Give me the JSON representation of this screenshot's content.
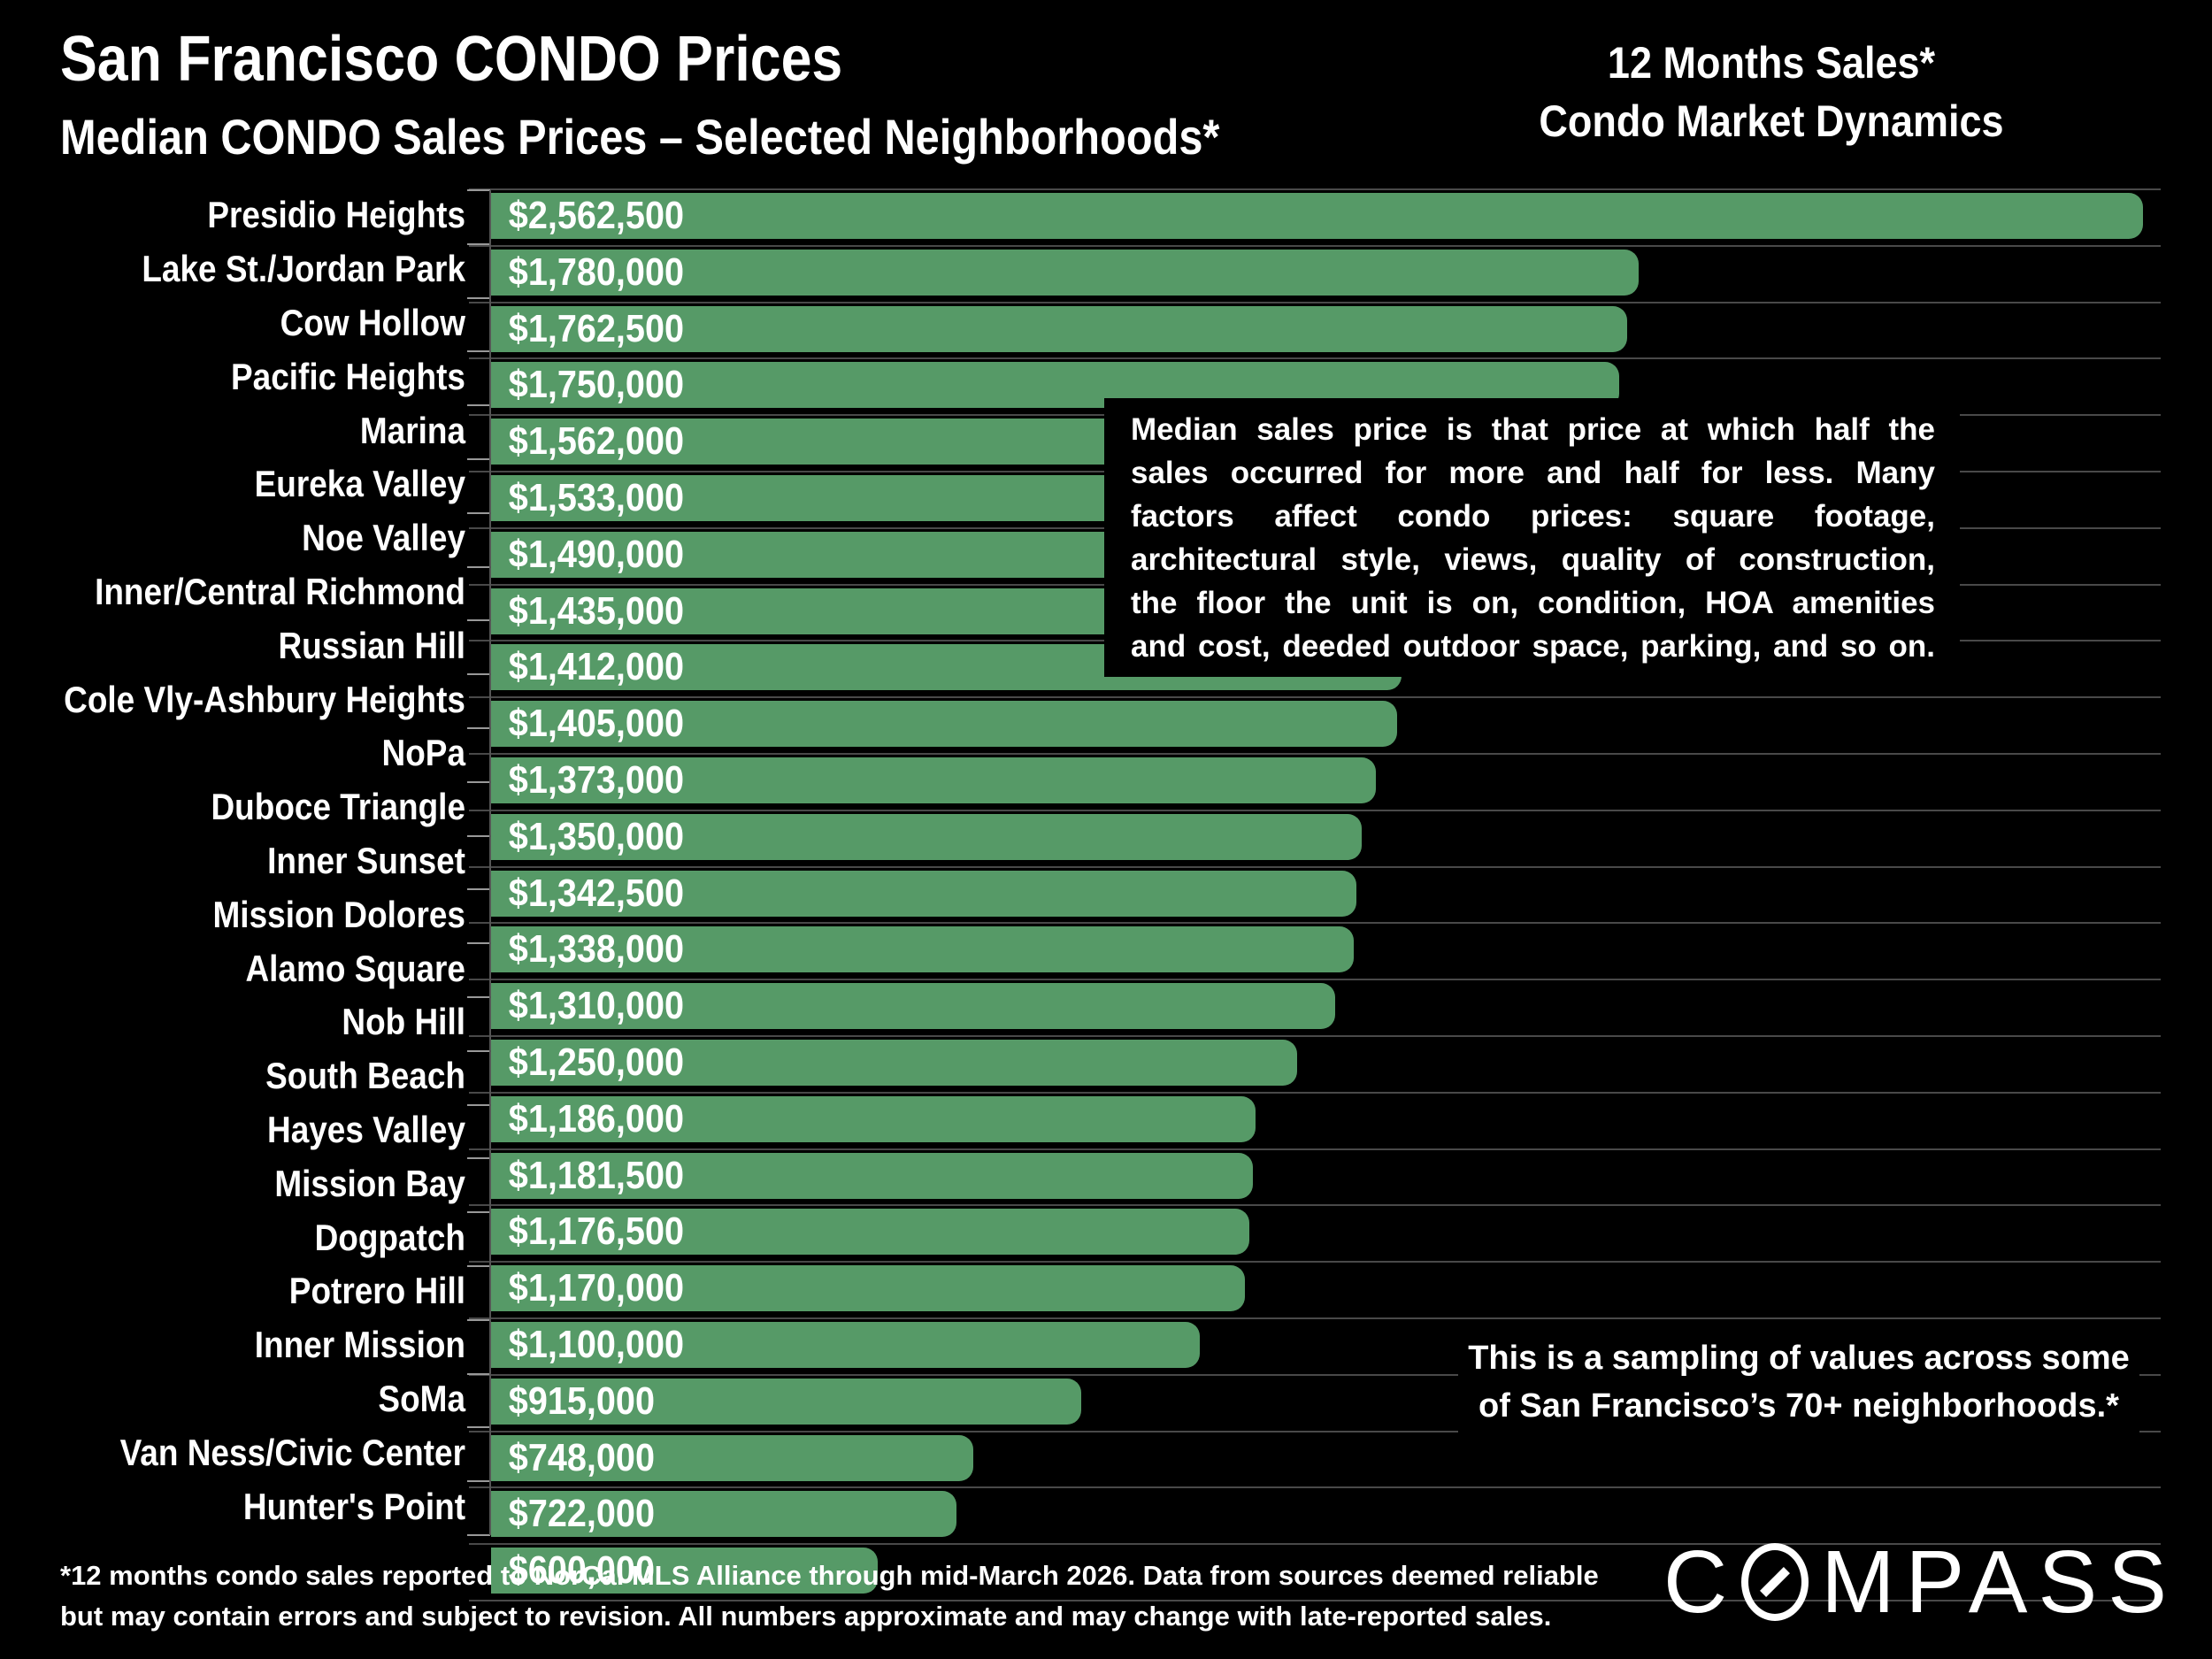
{
  "colors": {
    "background": "#000000",
    "bar": "#569a67",
    "gridline": "#494949",
    "axis": "#555555",
    "tick": "#999999",
    "text": "#ffffff"
  },
  "header": {
    "title": "San Francisco CONDO Prices",
    "subtitle": "Median CONDO Sales Prices – Selected Neighborhoods*",
    "right_title_line1": "12 Months Sales*",
    "right_title_line2": "Condo Market Dynamics"
  },
  "chart_data": {
    "type": "bar",
    "orientation": "horizontal",
    "title": "Median CONDO Sales Prices – Selected Neighborhoods*",
    "xlim": [
      0,
      2562500
    ],
    "grid": true,
    "legend": false,
    "categories": [
      "Presidio Heights",
      "Lake St./Jordan Park",
      "Cow Hollow",
      "Pacific Heights",
      "Marina",
      "Eureka Valley",
      "Noe Valley",
      "Inner/Central Richmond",
      "Russian Hill",
      "Cole Vly-Ashbury Heights",
      "NoPa",
      "Duboce Triangle",
      "Inner Sunset",
      "Mission Dolores",
      "Alamo Square",
      "Nob Hill",
      "South Beach",
      "Hayes Valley",
      "Mission Bay",
      "Dogpatch",
      "Potrero Hill",
      "Inner Mission",
      "SoMa",
      "Van Ness/Civic Center",
      "Hunter's Point"
    ],
    "values": [
      2562500,
      1780000,
      1762500,
      1750000,
      1562000,
      1533000,
      1490000,
      1435000,
      1412000,
      1405000,
      1373000,
      1350000,
      1342500,
      1338000,
      1310000,
      1250000,
      1186000,
      1181500,
      1176500,
      1170000,
      1100000,
      915000,
      748000,
      722000,
      600000
    ],
    "value_labels": [
      "$2,562,500",
      "$1,780,000",
      "$1,762,500",
      "$1,750,000",
      "$1,562,000",
      "$1,533,000",
      "$1,490,000",
      "$1,435,000",
      "$1,412,000",
      "$1,405,000",
      "$1,373,000",
      "$1,350,000",
      "$1,342,500",
      "$1,338,000",
      "$1,310,000",
      "$1,250,000",
      "$1,186,000",
      "$1,181,500",
      "$1,176,500",
      "$1,170,000",
      "$1,100,000",
      "$915,000",
      "$748,000",
      "$722,000",
      "$600,000"
    ]
  },
  "annotation_box": {
    "lines": [
      "Median sales price is that price at which half the",
      "sales occurred for more and half for less. Many",
      "factors affect condo prices: square footage,",
      "architectural style, views, quality of construction,",
      "the floor the unit is on, condition, HOA amenities",
      "and cost, deeded outdoor space, parking, and so on."
    ]
  },
  "sampling_note": {
    "lines": [
      "This is a sampling of values across some",
      "of San Francisco’s 70+ neighborhoods.*"
    ]
  },
  "footnote": {
    "lines": [
      "*12 months condo sales reported to NorCal MLS Alliance through mid-March 2026. Data from sources deemed reliable",
      "but may contain errors and subject to revision. All numbers approximate and may change with late-reported sales."
    ]
  },
  "logo": {
    "name": "COMPASS",
    "prefix": "C",
    "suffix": "MPASS"
  }
}
